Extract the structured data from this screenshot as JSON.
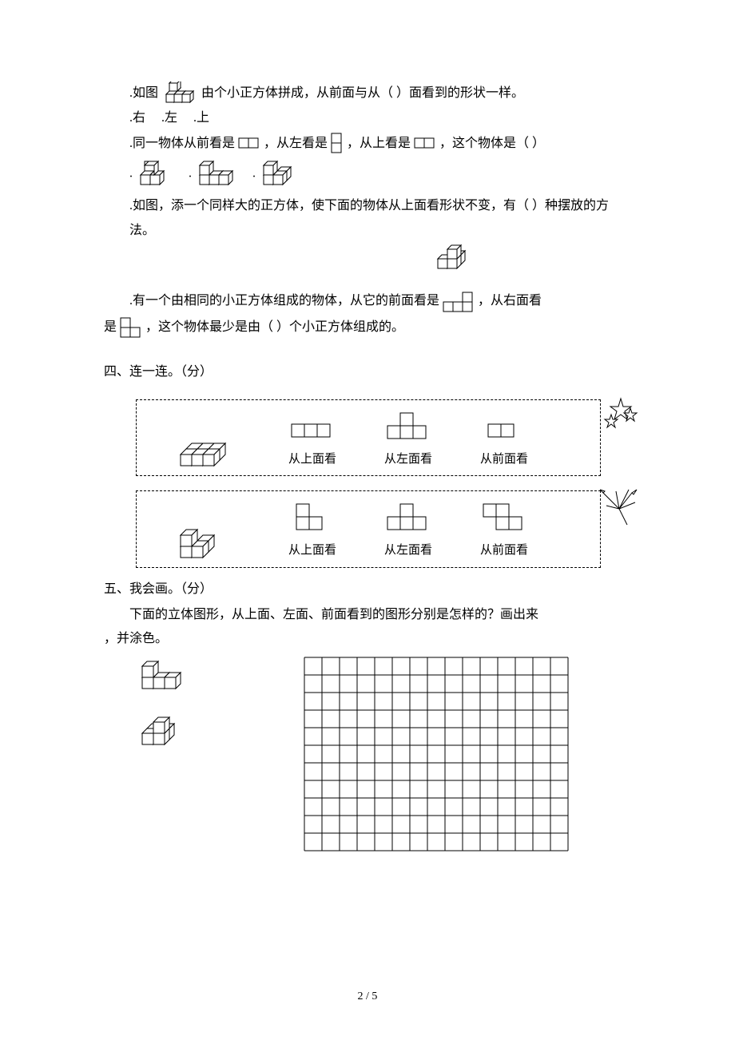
{
  "q1": {
    "prefix": ".如图",
    "text_after_fig": "由个小正方体拼成，从前面与从（  ）面看到的形状一样。",
    "opt_a": ".右",
    "opt_b": ".左",
    "opt_c": ".上"
  },
  "q2": {
    "prefix": ".同一物体从前看是",
    "mid1": "，从左看是",
    "mid2": "，从上看是",
    "tail": "，这个物体是（  ）",
    "dot": "."
  },
  "q3": {
    "text": ".如图，添一个同样大的正方体，使下面的物体从上面看形状不变，有（  ）种摆放的方法。"
  },
  "q4": {
    "line1_a": ".有一个由相同的小正方体组成的物体，从它的前面看是",
    "line1_b": "，从右面看",
    "line2_a": "是",
    "line2_b": "，这个物体最少是由（  ）个小正方体组成的。"
  },
  "sec4": {
    "title": "四、连一连。（分）",
    "top_label": "从上面看",
    "left_label": "从左面看",
    "front_label": "从前面看"
  },
  "sec5": {
    "title": "五、我会画。（分）",
    "intro": "下面的立体图形，从上面、左面、前面看到的图形分别是怎样的？画出来",
    "intro_tail": "，并涂色。"
  },
  "grid": {
    "cols": 15,
    "rows": 11,
    "cell": 22
  },
  "footer": "2 / 5",
  "stroke": "#000000",
  "fill": "#ffffff"
}
